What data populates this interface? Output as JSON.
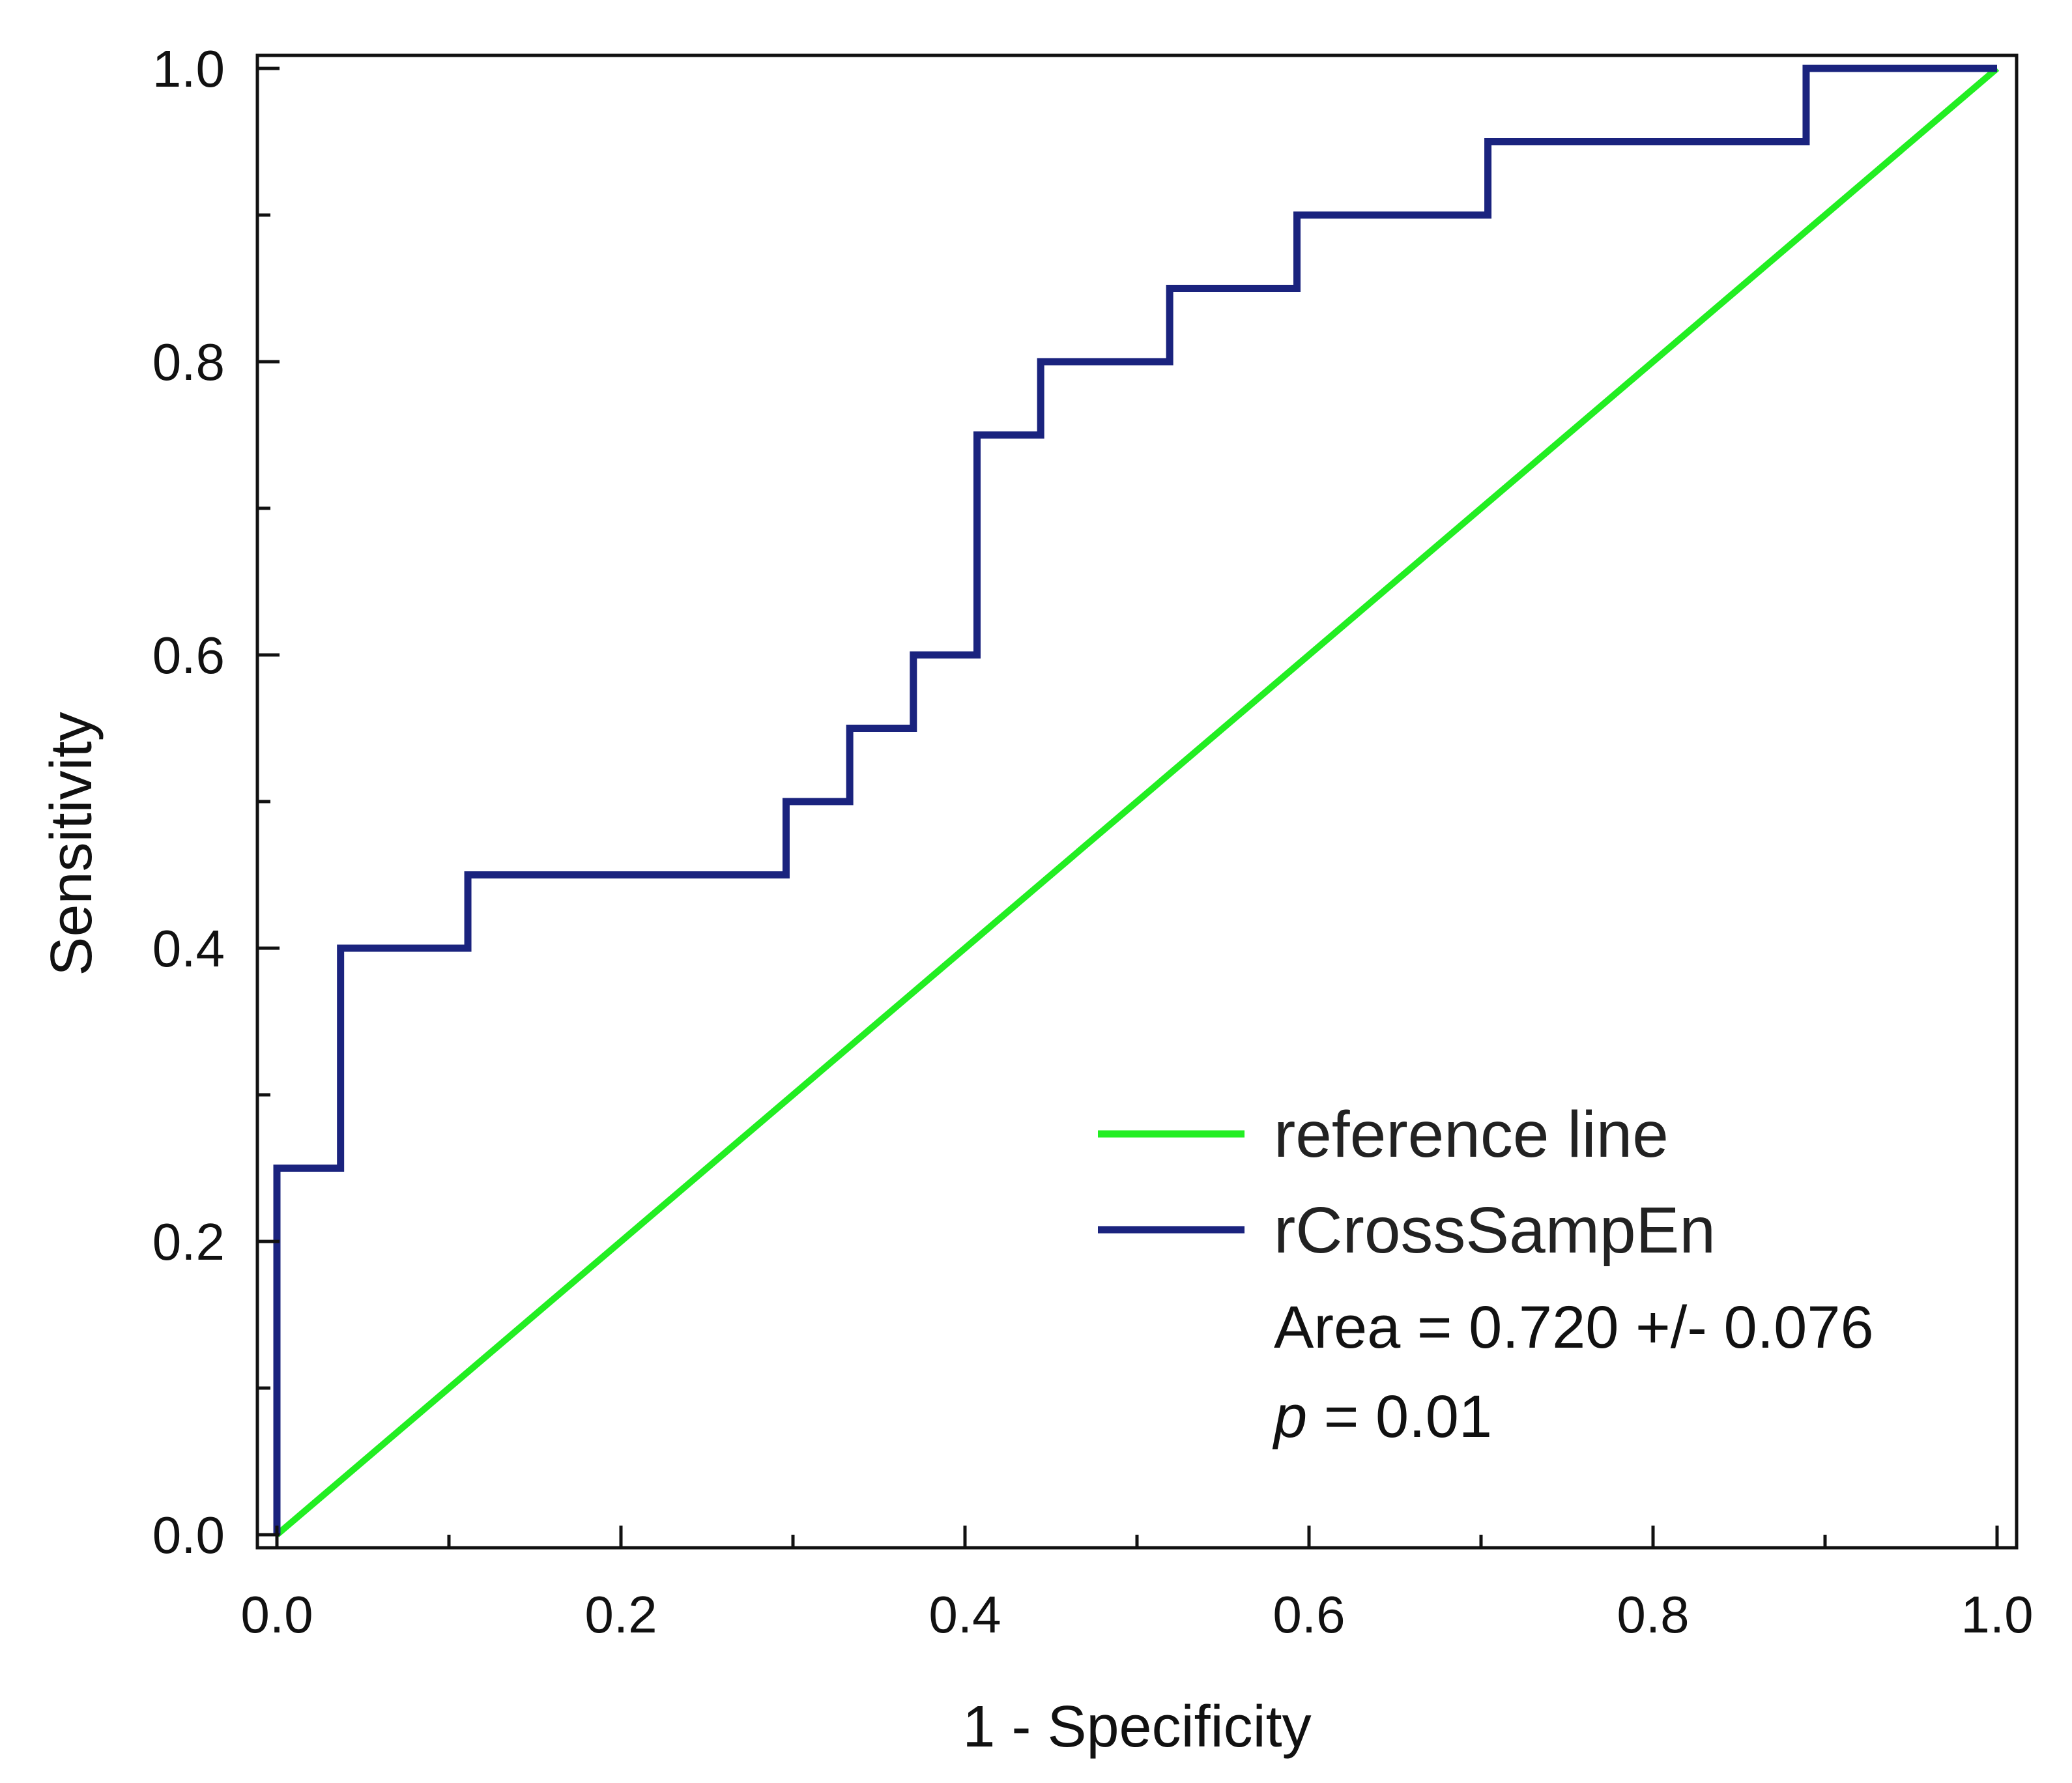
{
  "chart_data": {
    "type": "line",
    "title": "",
    "xlabel": "1 - Specificity",
    "ylabel": "Sensitivity",
    "xlim": [
      0.0,
      1.0
    ],
    "ylim": [
      0.0,
      1.0
    ],
    "xticks": [
      0.0,
      0.2,
      0.4,
      0.6,
      0.8,
      1.0
    ],
    "xtick_labels": [
      "0.0",
      "0.2",
      "0.4",
      "0.6",
      "0.8",
      "1.0"
    ],
    "xminor": [
      0.1,
      0.3,
      0.5,
      0.7,
      0.9
    ],
    "yticks": [
      0.0,
      0.2,
      0.4,
      0.6,
      0.8,
      1.0
    ],
    "ytick_labels": [
      "0.0",
      "0.2",
      "0.4",
      "0.6",
      "0.8",
      "1.0"
    ],
    "yminor": [
      0.1,
      0.3,
      0.5,
      0.7,
      0.9
    ],
    "grid": false,
    "legend_position": "bottom-right",
    "series": [
      {
        "name": "reference line",
        "color": "#22ee22",
        "x": [
          0.0,
          1.0
        ],
        "y": [
          0.0,
          1.0
        ]
      },
      {
        "name": "rCrossSampEn",
        "color": "#1a237e",
        "x": [
          0.0,
          0.0,
          0.037,
          0.037,
          0.111,
          0.111,
          0.296,
          0.296,
          0.333,
          0.333,
          0.37,
          0.37,
          0.407,
          0.407,
          0.444,
          0.444,
          0.519,
          0.519,
          0.593,
          0.593,
          0.704,
          0.704,
          0.889,
          0.889,
          1.0
        ],
        "y": [
          0.0,
          0.25,
          0.25,
          0.4,
          0.4,
          0.45,
          0.45,
          0.5,
          0.5,
          0.55,
          0.55,
          0.6,
          0.6,
          0.75,
          0.75,
          0.8,
          0.8,
          0.85,
          0.85,
          0.9,
          0.9,
          0.95,
          0.95,
          1.0,
          1.0
        ]
      }
    ],
    "annotations": {
      "area": "Area = 0.720 +/- 0.076",
      "p_symbol": "p",
      "p_rest": " = 0.01"
    }
  }
}
